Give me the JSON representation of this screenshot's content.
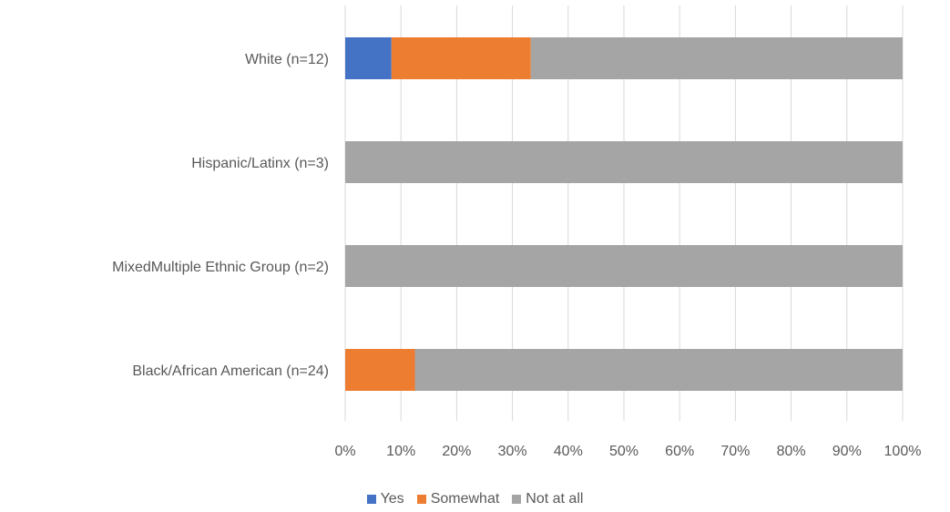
{
  "chart_data": {
    "type": "bar",
    "orientation": "horizontal",
    "stacked": "100%",
    "categories": [
      "White (n=12)",
      "Hispanic/Latinx (n=3)",
      "MixedMultiple Ethnic Group (n=2)",
      "Black/African American (n=24)"
    ],
    "series": [
      {
        "name": "Yes",
        "color": "#4472C4",
        "values": [
          8.3,
          0,
          0,
          0
        ]
      },
      {
        "name": "Somewhat",
        "color": "#ED7D31",
        "values": [
          25.0,
          0,
          0,
          12.5
        ]
      },
      {
        "name": "Not at all",
        "color": "#A5A5A5",
        "values": [
          66.7,
          100,
          100,
          87.5
        ]
      }
    ],
    "xlim": [
      0,
      100
    ],
    "x_ticks": [
      "0%",
      "10%",
      "20%",
      "30%",
      "40%",
      "50%",
      "60%",
      "70%",
      "80%",
      "90%",
      "100%"
    ],
    "grid": "vertical",
    "legend_position": "bottom"
  }
}
